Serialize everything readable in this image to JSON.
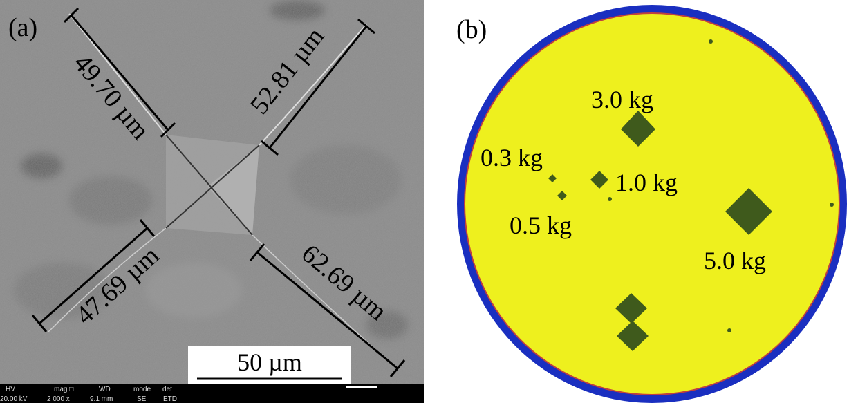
{
  "panel_a": {
    "label": "(a)",
    "measurements": [
      "49.70 µm",
      "52.81 µm",
      "47.69 µm",
      "62.69 µm"
    ],
    "scale_bar": "50 µm",
    "info_bar": {
      "headers": [
        "HV",
        "mag □",
        "WD",
        "mode",
        "det"
      ],
      "values": [
        "20.00 kV",
        "2 000 x",
        "9.1 mm",
        "SE",
        "ETD"
      ]
    }
  },
  "panel_b": {
    "label": "(b)",
    "loads": [
      "3.0 kg",
      "0.3 kg",
      "1.0 kg",
      "0.5 kg",
      "5.0 kg"
    ]
  }
}
